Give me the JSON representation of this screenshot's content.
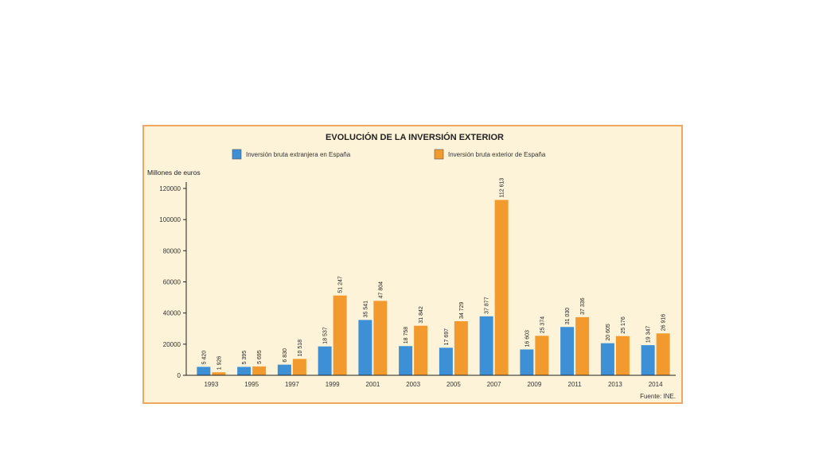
{
  "chart_data": {
    "type": "bar",
    "title": "EVOLUCIÓN DE LA INVERSIÓN EXTERIOR",
    "ylabel": "Millones de euros",
    "xlabel": "",
    "ylim": [
      0,
      120000
    ],
    "yticks": [
      0,
      20000,
      40000,
      60000,
      80000,
      100000,
      120000
    ],
    "categories": [
      "1993",
      "1995",
      "1997",
      "1999",
      "2001",
      "2003",
      "2005",
      "2007",
      "2009",
      "2011",
      "2013",
      "2014"
    ],
    "series": [
      {
        "name": "Inversión bruta extranjera en España",
        "color": "#3d8fd6",
        "values": [
          5420,
          5395,
          6830,
          18537,
          35541,
          18758,
          17697,
          37877,
          16603,
          31030,
          20605,
          19347
        ],
        "labels": [
          "5 420",
          "5 395",
          "6 830",
          "18 537",
          "35 541",
          "18 758",
          "17 697",
          "37 877",
          "16 603",
          "31 030",
          "20 605",
          "19 347"
        ]
      },
      {
        "name": "Inversión bruta exterior de España",
        "color": "#f29a2e",
        "values": [
          1926,
          5695,
          10518,
          51247,
          47804,
          31842,
          34729,
          112613,
          25374,
          37336,
          25176,
          26916
        ],
        "labels": [
          "1 926",
          "5 695",
          "10 518",
          "51 247",
          "47 804",
          "31 842",
          "34 729",
          "112 613",
          "25 374",
          "37 336",
          "25 176",
          "26 916"
        ]
      }
    ],
    "grid": false,
    "legend": "top",
    "source": "Fuente: INE."
  },
  "colors": {
    "panel_background": "#fdf3d8",
    "panel_border": "#f0a860",
    "series_blue": "#3d8fd6",
    "series_orange": "#f29a2e"
  }
}
